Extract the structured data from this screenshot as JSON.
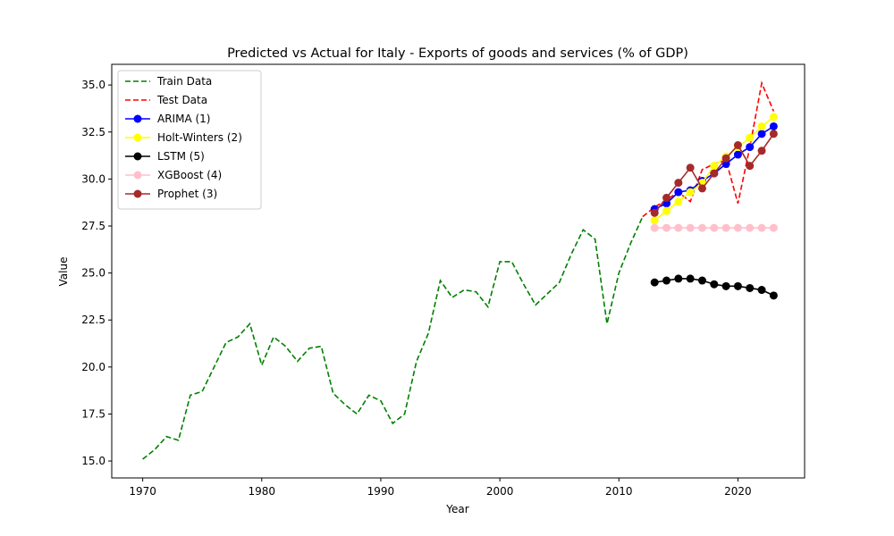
{
  "chart_data": {
    "type": "line",
    "title": "Predicted vs Actual for Italy - Exports of goods and services (% of GDP)",
    "xlabel": "Year",
    "ylabel": "Value",
    "xlim": [
      1967.4,
      2025.6
    ],
    "ylim": [
      14.1,
      36.1
    ],
    "xticks": [
      1970,
      1980,
      1990,
      2000,
      2010,
      2020
    ],
    "yticks": [
      15.0,
      17.5,
      20.0,
      22.5,
      25.0,
      27.5,
      30.0,
      32.5,
      35.0
    ],
    "ytick_labels": [
      "15.0",
      "17.5",
      "20.0",
      "22.5",
      "25.0",
      "27.5",
      "30.0",
      "32.5",
      "35.0"
    ],
    "grid": false,
    "legend_position": "top-left",
    "series": [
      {
        "name": "Train Data",
        "color": "#008000",
        "style": "dashed",
        "marker": false,
        "x": [
          1970,
          1971,
          1972,
          1973,
          1974,
          1975,
          1976,
          1977,
          1978,
          1979,
          1980,
          1981,
          1982,
          1983,
          1984,
          1985,
          1986,
          1987,
          1988,
          1989,
          1990,
          1991,
          1992,
          1993,
          1994,
          1995,
          1996,
          1997,
          1998,
          1999,
          2000,
          2001,
          2002,
          2003,
          2004,
          2005,
          2006,
          2007,
          2008,
          2009,
          2010,
          2011,
          2012
        ],
        "y": [
          15.1,
          15.6,
          16.3,
          16.1,
          18.5,
          18.7,
          20.0,
          21.3,
          21.6,
          22.3,
          20.1,
          21.6,
          21.1,
          20.3,
          21.0,
          21.1,
          18.6,
          18.0,
          17.5,
          18.5,
          18.2,
          17.0,
          17.5,
          20.3,
          21.8,
          24.6,
          23.7,
          24.1,
          24.0,
          23.2,
          25.6,
          25.6,
          24.4,
          23.3,
          23.9,
          24.5,
          26.0,
          27.3,
          26.8,
          22.3,
          25.0,
          26.6,
          28.0
        ]
      },
      {
        "name": "Test Data",
        "color": "#ff0000",
        "style": "dashed",
        "marker": false,
        "x": [
          2012,
          2013,
          2014,
          2015,
          2016,
          2017,
          2018,
          2019,
          2020,
          2021,
          2022,
          2023
        ],
        "y": [
          28.0,
          28.5,
          28.9,
          29.3,
          28.8,
          30.5,
          30.8,
          31.0,
          28.7,
          31.7,
          35.1,
          33.6
        ]
      },
      {
        "name": "ARIMA (1)",
        "color": "#0000ff",
        "style": "solid",
        "marker": true,
        "x": [
          2013,
          2014,
          2015,
          2016,
          2017,
          2018,
          2019,
          2020,
          2021,
          2022,
          2023
        ],
        "y": [
          28.4,
          28.7,
          29.3,
          29.4,
          29.9,
          30.3,
          30.8,
          31.3,
          31.7,
          32.4,
          32.8
        ]
      },
      {
        "name": "Holt-Winters (2)",
        "color": "#ffff00",
        "style": "solid",
        "marker": true,
        "x": [
          2013,
          2014,
          2015,
          2016,
          2017,
          2018,
          2019,
          2020,
          2021,
          2022,
          2023
        ],
        "y": [
          27.8,
          28.3,
          28.8,
          29.3,
          29.8,
          30.7,
          31.2,
          31.7,
          32.2,
          32.8,
          33.3
        ]
      },
      {
        "name": "LSTM (5)",
        "color": "#000000",
        "style": "solid",
        "marker": true,
        "x": [
          2013,
          2014,
          2015,
          2016,
          2017,
          2018,
          2019,
          2020,
          2021,
          2022,
          2023
        ],
        "y": [
          24.5,
          24.6,
          24.7,
          24.7,
          24.6,
          24.4,
          24.3,
          24.3,
          24.2,
          24.1,
          23.8
        ]
      },
      {
        "name": "XGBoost (4)",
        "color": "#ffc0cb",
        "style": "solid",
        "marker": true,
        "x": [
          2013,
          2014,
          2015,
          2016,
          2017,
          2018,
          2019,
          2020,
          2021,
          2022,
          2023
        ],
        "y": [
          27.4,
          27.4,
          27.4,
          27.4,
          27.4,
          27.4,
          27.4,
          27.4,
          27.4,
          27.4,
          27.4
        ]
      },
      {
        "name": "Prophet (3)",
        "color": "#a52a2a",
        "style": "solid",
        "marker": true,
        "x": [
          2013,
          2014,
          2015,
          2016,
          2017,
          2018,
          2019,
          2020,
          2021,
          2022,
          2023
        ],
        "y": [
          28.2,
          29.0,
          29.8,
          30.6,
          29.5,
          30.3,
          31.1,
          31.8,
          30.7,
          31.5,
          32.4
        ]
      }
    ]
  }
}
